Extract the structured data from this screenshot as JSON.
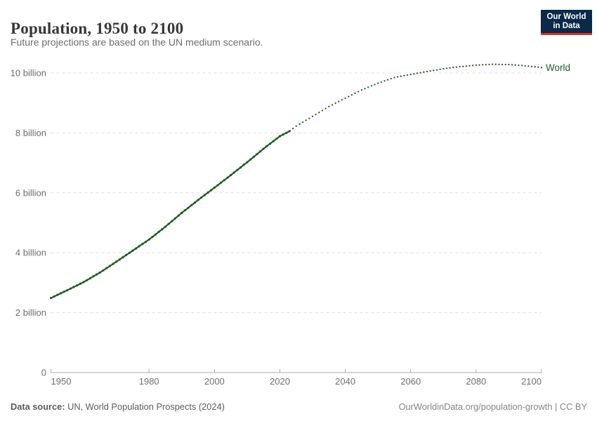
{
  "header": {
    "title": "Population, 1950 to 2100",
    "subtitle": "Future projections are based on the UN medium scenario.",
    "logo": {
      "line1": "Our World",
      "line2": "in Data",
      "bg_color": "#0b2949",
      "accent_color": "#d0342c"
    }
  },
  "footer": {
    "source_label": "Data source:",
    "source_text": " UN, World Population Prospects (2024)",
    "link_text": "OurWorldinData.org/population-growth | CC BY"
  },
  "chart_data": {
    "type": "line",
    "title": "Population, 1950 to 2100",
    "xlabel": "",
    "ylabel": "",
    "xlim": [
      1950,
      2100
    ],
    "ylim": [
      0,
      10.5
    ],
    "grid": true,
    "legend_position": "right-of-line",
    "x_ticks": [
      1950,
      1980,
      2000,
      2020,
      2040,
      2060,
      2080,
      2100
    ],
    "y_ticks": [
      {
        "value": 0,
        "label": "0"
      },
      {
        "value": 2,
        "label": "2 billion"
      },
      {
        "value": 4,
        "label": "4 billion"
      },
      {
        "value": 6,
        "label": "6 billion"
      },
      {
        "value": 8,
        "label": "8 billion"
      },
      {
        "value": 10,
        "label": "10 billion"
      }
    ],
    "unit": "billion",
    "series": [
      {
        "name": "World",
        "color": "#1e5c22",
        "historical": {
          "years": [
            1950,
            1955,
            1960,
            1965,
            1970,
            1975,
            1980,
            1985,
            1990,
            1995,
            2000,
            2005,
            2010,
            2015,
            2020,
            2023
          ],
          "values": [
            2.49,
            2.75,
            3.02,
            3.34,
            3.7,
            4.07,
            4.44,
            4.87,
            5.33,
            5.76,
            6.17,
            6.59,
            7.02,
            7.47,
            7.89,
            8.06
          ]
        },
        "projection": {
          "years": [
            2023,
            2025,
            2030,
            2035,
            2040,
            2045,
            2050,
            2055,
            2060,
            2065,
            2070,
            2075,
            2080,
            2085,
            2090,
            2095,
            2100
          ],
          "values": [
            8.06,
            8.23,
            8.55,
            8.88,
            9.16,
            9.43,
            9.66,
            9.85,
            9.95,
            10.05,
            10.14,
            10.21,
            10.26,
            10.29,
            10.28,
            10.24,
            10.18
          ]
        }
      }
    ],
    "colors": {
      "gridline": "#dedede",
      "axis": "#a8a8a8",
      "tick_label": "#6e6e6e"
    }
  }
}
